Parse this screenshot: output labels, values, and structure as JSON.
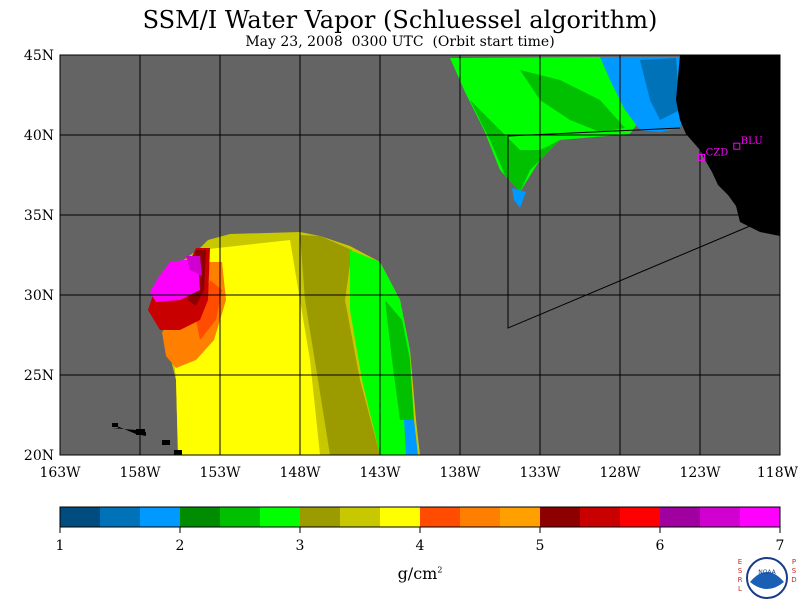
{
  "header": {
    "title": "SSM/I Water Vapor (Schluessel algorithm)",
    "subtitle": "May 23, 2008  0300 UTC  (Orbit start time)"
  },
  "map": {
    "lat_ticks": [
      "45N",
      "40N",
      "35N",
      "30N",
      "25N",
      "20N"
    ],
    "lon_ticks": [
      "163W",
      "158W",
      "153W",
      "148W",
      "143W",
      "138W",
      "133W",
      "128W",
      "123W",
      "118W"
    ],
    "lat_range": [
      20,
      45
    ],
    "lon_range": [
      -163,
      -118
    ],
    "grid": true,
    "ocean_color": "#646464",
    "land_color": "#000000",
    "sites": [
      {
        "label": "CZD",
        "lon": -122.9,
        "lat": 38.6
      },
      {
        "label": "BLU",
        "lon": -120.7,
        "lat": 39.3
      }
    ]
  },
  "colorbar": {
    "ticks": [
      "1",
      "2",
      "3",
      "4",
      "5",
      "6",
      "7"
    ],
    "range": [
      1,
      7
    ],
    "colors": [
      "#004c7f",
      "#0073b8",
      "#0099ff",
      "#008c00",
      "#00c000",
      "#00ff00",
      "#9b9b00",
      "#c8c800",
      "#ffff00",
      "#ff4c00",
      "#ff7f00",
      "#ff9f00",
      "#8c0000",
      "#c80000",
      "#ff0000",
      "#a000a0",
      "#d000d0",
      "#ff00ff"
    ],
    "units": "g/cm",
    "units_sup": "2"
  },
  "logo": {
    "left_letters": "ESRL",
    "right_letters": "PSD",
    "center_text": "NOAA"
  }
}
